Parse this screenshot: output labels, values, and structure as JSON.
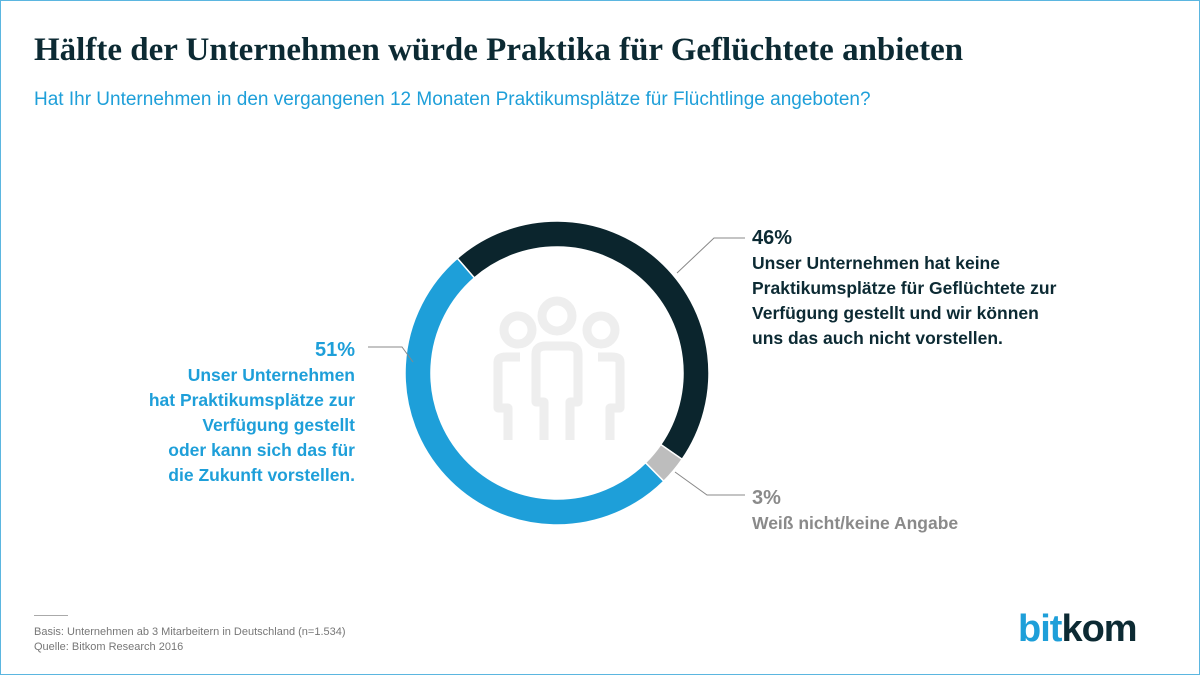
{
  "title": "Hälfte der Unternehmen würde Praktika für Geflüchtete anbieten",
  "subtitle": "Hat Ihr Unternehmen in den vergangenen 12 Monaten Praktikumsplätze für Flüchtlinge angeboten?",
  "chart_data": {
    "type": "pie",
    "donut": true,
    "center_icon": "people-group-icon",
    "slices": [
      {
        "value": 46,
        "label_pct": "46%",
        "label": "Unser Unternehmen hat keine Praktikumsplätze für Geflüchtete zur Verfügung gestellt und wir können uns das auch nicht vorstellen.",
        "lines": [
          "Unser Unternehmen hat keine",
          "Praktikumsplätze für Geflüchtete zur",
          "Verfügung gestellt und wir können",
          "uns das auch nicht vorstellen."
        ],
        "color": "#0b252d"
      },
      {
        "value": 3,
        "label_pct": "3%",
        "label": "Weiß nicht/keine Angabe",
        "lines": [
          "Weiß nicht/keine Angabe"
        ],
        "color": "#bdbdbd"
      },
      {
        "value": 51,
        "label_pct": "51%",
        "label": "Unser Unternehmen hat Praktikumsplätze zur Verfügung gestellt oder kann sich das für die Zukunft vorstellen.",
        "lines": [
          "Unser Unternehmen",
          "hat Praktikumsplätze zur",
          "Verfügung gestellt",
          "oder kann sich das für",
          "die Zukunft vorstellen."
        ],
        "color": "#1e9fd9"
      }
    ]
  },
  "footer": {
    "basis": "Basis: Unternehmen ab 3 Mitarbeitern in Deutschland (n=1.534)",
    "source": "Quelle: Bitkom Research 2016"
  },
  "logo": {
    "part1": "bit",
    "part2": "kom",
    "color1": "#1e9fd9",
    "color2": "#0c2a33"
  }
}
